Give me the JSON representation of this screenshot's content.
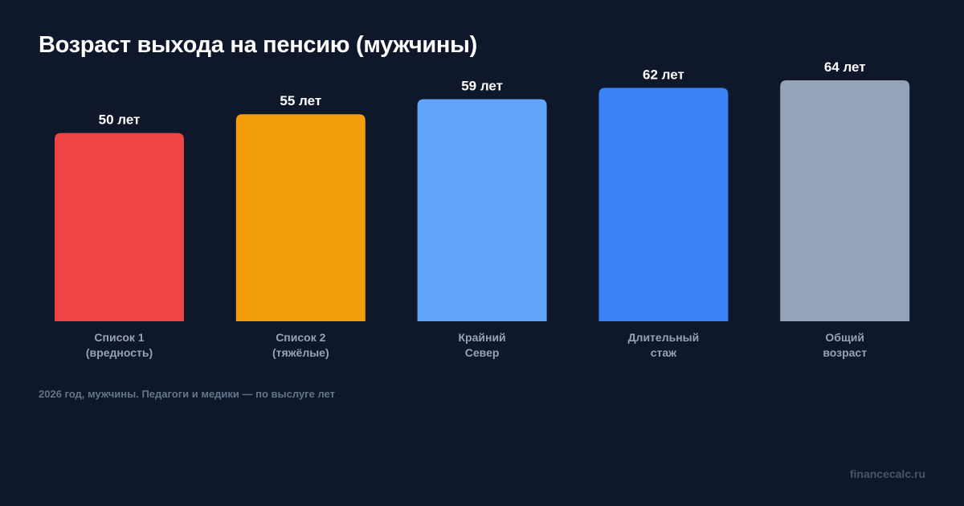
{
  "chart_data": {
    "type": "bar",
    "title": "Возраст выхода на пенсию (мужчины)",
    "categories": [
      [
        "Список 1",
        "(вредность)"
      ],
      [
        "Список 2",
        "(тяжёлые)"
      ],
      [
        "Крайний",
        "Север"
      ],
      [
        "Длительный",
        "стаж"
      ],
      [
        "Общий",
        "возраст"
      ]
    ],
    "values": [
      50,
      55,
      59,
      62,
      64
    ],
    "data_labels": [
      "50 лет",
      "55 лет",
      "59 лет",
      "62 лет",
      "64 лет"
    ],
    "colors": [
      "#ef4444",
      "#f59e0b",
      "#60a5fa",
      "#3b82f6",
      "#94a3b8"
    ],
    "xlabel": "",
    "ylabel": "",
    "ylim": [
      0,
      64
    ],
    "grid": false
  },
  "footnote": "2026 год, мужчины. Педагоги и медики — по выслуге лет",
  "watermark": "financecalc.ru",
  "background": "#0f172a"
}
